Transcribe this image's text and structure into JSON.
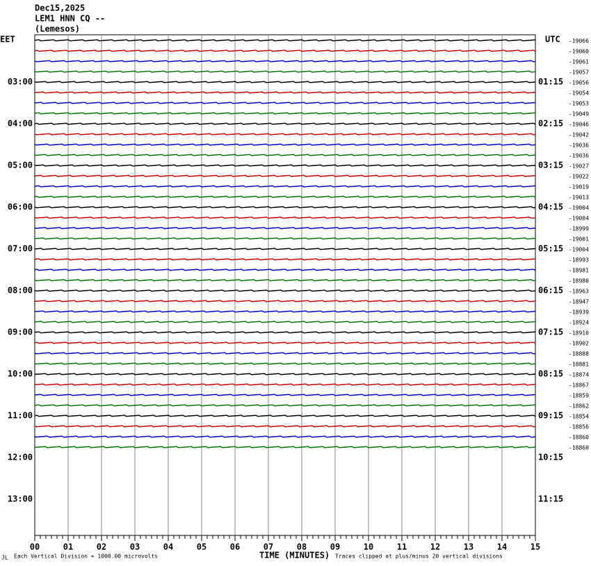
{
  "header": {
    "date": "Dec15,2025",
    "station": "LEM1 HNN CQ --",
    "location": "(Lemesos)"
  },
  "left_zone": "EET",
  "right_zone": "UTC",
  "left_hours": [
    "03:00",
    "04:00",
    "05:00",
    "06:00",
    "07:00",
    "08:00",
    "09:00",
    "10:00",
    "11:00",
    "12:00",
    "13:00"
  ],
  "right_hours": [
    "01:15",
    "02:15",
    "03:15",
    "04:15",
    "05:15",
    "06:15",
    "07:15",
    "08:15",
    "09:15",
    "10:15",
    "11:15"
  ],
  "trace_offsets": [
    -19066,
    -19060,
    -19061,
    -19057,
    -19056,
    -19054,
    -19053,
    -19049,
    -19046,
    -19042,
    -19036,
    -19036,
    -19027,
    -19022,
    -19019,
    -19013,
    -19004,
    -19004,
    -18999,
    -19001,
    -19004,
    -18993,
    -18981,
    -18980,
    -18963,
    -18947,
    -18939,
    -18924,
    -18910,
    -18902,
    -18888,
    -18881,
    -18874,
    -18867,
    -18859,
    -18862,
    -18854,
    -18856,
    -18860,
    -18860
  ],
  "x_ticks": [
    "00",
    "01",
    "02",
    "03",
    "04",
    "05",
    "06",
    "07",
    "08",
    "09",
    "10",
    "11",
    "12",
    "13",
    "14",
    "15"
  ],
  "footer": {
    "corner": "JL",
    "scale_note": "Each Vertical Division = 1000.00 microvolts",
    "axis_title": "TIME (MINUTES)",
    "clip_note": "Traces clipped at plus/minus 20 vertical divisions"
  }
}
